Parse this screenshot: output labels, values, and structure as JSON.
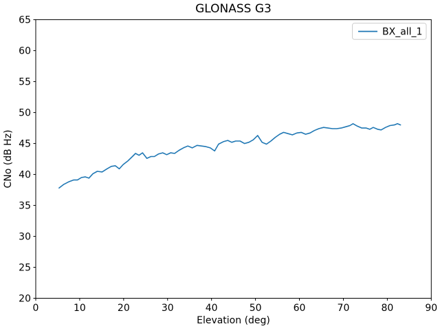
{
  "colors": {
    "line": "#1f77b4",
    "axis": "#000000",
    "background": "#ffffff",
    "legend_border": "#cccccc"
  },
  "chart_data": {
    "type": "line",
    "title": "GLONASS G3",
    "xlabel": "Elevation (deg)",
    "ylabel": "CNo (dB Hz)",
    "xlim": [
      0,
      90
    ],
    "ylim": [
      20,
      65
    ],
    "xticks": [
      0,
      10,
      20,
      30,
      40,
      50,
      60,
      70,
      80,
      90
    ],
    "yticks": [
      20,
      25,
      30,
      35,
      40,
      45,
      50,
      55,
      60,
      65
    ],
    "grid": false,
    "legend": {
      "position": "upper right",
      "entries": [
        {
          "label": "BX_all_1",
          "color": "#1f77b4"
        }
      ]
    },
    "series": [
      {
        "name": "BX_all_1",
        "color": "#1f77b4",
        "x": [
          5.3,
          6.4,
          7.5,
          8.6,
          9.5,
          10.4,
          11.3,
          12.1,
          13.0,
          14.0,
          15.1,
          16.2,
          17.2,
          18.1,
          19.0,
          19.9,
          21.0,
          22.0,
          22.7,
          23.5,
          24.3,
          25.3,
          26.2,
          27.0,
          27.9,
          28.9,
          29.8,
          30.7,
          31.6,
          32.6,
          33.6,
          34.6,
          35.6,
          36.7,
          37.7,
          38.7,
          39.7,
          40.7,
          41.6,
          42.7,
          43.7,
          44.6,
          45.5,
          46.5,
          47.5,
          48.5,
          49.5,
          50.5,
          51.5,
          52.5,
          53.5,
          54.5,
          55.5,
          56.4,
          57.4,
          58.4,
          59.4,
          60.4,
          61.4,
          62.4,
          63.4,
          64.4,
          65.5,
          66.5,
          67.5,
          68.5,
          69.5,
          70.5,
          71.5,
          72.2,
          73.2,
          74.2,
          75.2,
          76.0,
          76.8,
          77.8,
          78.6,
          79.6,
          80.6,
          81.6,
          82.3,
          83.0
        ],
        "y": [
          37.8,
          38.4,
          38.8,
          39.1,
          39.1,
          39.5,
          39.6,
          39.4,
          40.1,
          40.5,
          40.4,
          40.9,
          41.3,
          41.4,
          40.9,
          41.6,
          42.2,
          42.9,
          43.4,
          43.1,
          43.5,
          42.6,
          42.9,
          42.9,
          43.3,
          43.5,
          43.2,
          43.5,
          43.4,
          43.9,
          44.3,
          44.6,
          44.3,
          44.7,
          44.6,
          44.5,
          44.3,
          43.8,
          44.9,
          45.3,
          45.5,
          45.2,
          45.4,
          45.4,
          45.0,
          45.2,
          45.6,
          46.3,
          45.2,
          44.9,
          45.4,
          46.0,
          46.5,
          46.8,
          46.6,
          46.4,
          46.7,
          46.8,
          46.5,
          46.7,
          47.1,
          47.4,
          47.6,
          47.5,
          47.4,
          47.4,
          47.5,
          47.7,
          47.9,
          48.2,
          47.8,
          47.5,
          47.5,
          47.3,
          47.6,
          47.3,
          47.2,
          47.6,
          47.9,
          48.0,
          48.2,
          48.0
        ]
      }
    ]
  }
}
